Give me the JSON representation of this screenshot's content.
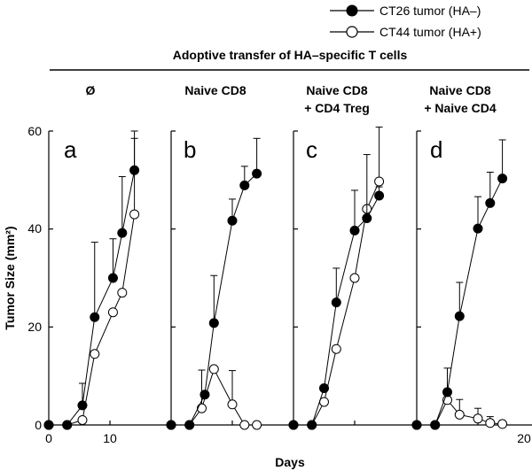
{
  "chart_data": {
    "type": "line",
    "title": "Adoptive transfer of HA–specific T cells",
    "xlabel": "Days",
    "ylabel": "Tumor Size (mm²)",
    "xlim": [
      0,
      20
    ],
    "ylim": [
      0,
      60
    ],
    "xticks": [
      "0",
      "10",
      "20"
    ],
    "yticks": [
      "0",
      "20",
      "40",
      "60"
    ],
    "grid": false,
    "legend_position": "top-right",
    "legend": [
      {
        "name": "CT26 tumor (HA–)",
        "marker": "filled-circle"
      },
      {
        "name": "CT44 tumor (HA+)",
        "marker": "open-circle"
      }
    ],
    "panels": [
      {
        "letter": "a",
        "header": [
          "Ø"
        ],
        "series": [
          {
            "name": "CT26 tumor (HA–)",
            "marker": "filled",
            "x": [
              0,
              3,
              5.5,
              7.5,
              10.5,
              12,
              14
            ],
            "y": [
              0,
              0,
              4,
              22,
              30,
              39.2,
              52
            ],
            "err": [
              0,
              0,
              4.5,
              15.3,
              8,
              11.5,
              8
            ]
          },
          {
            "name": "CT44 tumor (HA+)",
            "marker": "open",
            "x": [
              0,
              3,
              5.5,
              7.5,
              10.5,
              12,
              14
            ],
            "y": [
              0,
              0,
              1,
              14.5,
              23,
              27,
              43
            ],
            "err": [
              0,
              0,
              0,
              0,
              0,
              0,
              15.5
            ]
          }
        ]
      },
      {
        "letter": "b",
        "header": [
          "Naive CD8"
        ],
        "series": [
          {
            "name": "CT26 tumor (HA–)",
            "marker": "filled",
            "x": [
              0,
              3,
              5.5,
              7,
              10,
              12,
              14
            ],
            "y": [
              0,
              0,
              6.2,
              20.8,
              41.7,
              48.9,
              51.3
            ],
            "err": [
              0,
              0,
              0,
              9.7,
              4.4,
              3.9,
              7.2
            ]
          },
          {
            "name": "CT44 tumor (HA+)",
            "marker": "open",
            "x": [
              0,
              3,
              5,
              7,
              10,
              12,
              14
            ],
            "y": [
              0,
              0,
              3.4,
              11.4,
              4.2,
              0,
              0
            ],
            "err": [
              0,
              0,
              7.8,
              0,
              6.9,
              0,
              0
            ]
          }
        ]
      },
      {
        "letter": "c",
        "header": [
          "Naive CD8",
          "+ CD4 Treg"
        ],
        "series": [
          {
            "name": "CT26 tumor (HA–)",
            "marker": "filled",
            "x": [
              0,
              3,
              5,
              7,
              10,
              12,
              14
            ],
            "y": [
              0,
              0,
              7.5,
              25,
              39.7,
              42.2,
              46.8
            ],
            "err": [
              0,
              0,
              0,
              7,
              8.2,
              13,
              1.8
            ]
          },
          {
            "name": "CT44 tumor (HA+)",
            "marker": "open",
            "x": [
              0,
              3,
              5,
              7,
              10,
              12,
              14
            ],
            "y": [
              0,
              0,
              4.7,
              15.5,
              30,
              44.1,
              49.7
            ],
            "err": [
              0,
              0,
              0,
              0,
              0,
              0,
              11.1
            ]
          }
        ]
      },
      {
        "letter": "d",
        "header": [
          "Naive CD8",
          "+ Naive CD4"
        ],
        "series": [
          {
            "name": "CT26 tumor (HA–)",
            "marker": "filled",
            "x": [
              0,
              3,
              5,
              7,
              10,
              12,
              14
            ],
            "y": [
              0,
              0,
              6.7,
              22.2,
              40.1,
              45.3,
              50.3
            ],
            "err": [
              0,
              0,
              4.9,
              6.9,
              6.5,
              6.3,
              7.9
            ]
          },
          {
            "name": "CT44 tumor (HA+)",
            "marker": "open",
            "x": [
              0,
              3,
              5,
              7,
              10,
              12,
              14
            ],
            "y": [
              0,
              0,
              5.1,
              2.1,
              1.3,
              0.4,
              0.2
            ],
            "err": [
              0,
              0,
              0,
              3.1,
              2.1,
              1.3,
              0
            ]
          }
        ]
      }
    ]
  }
}
